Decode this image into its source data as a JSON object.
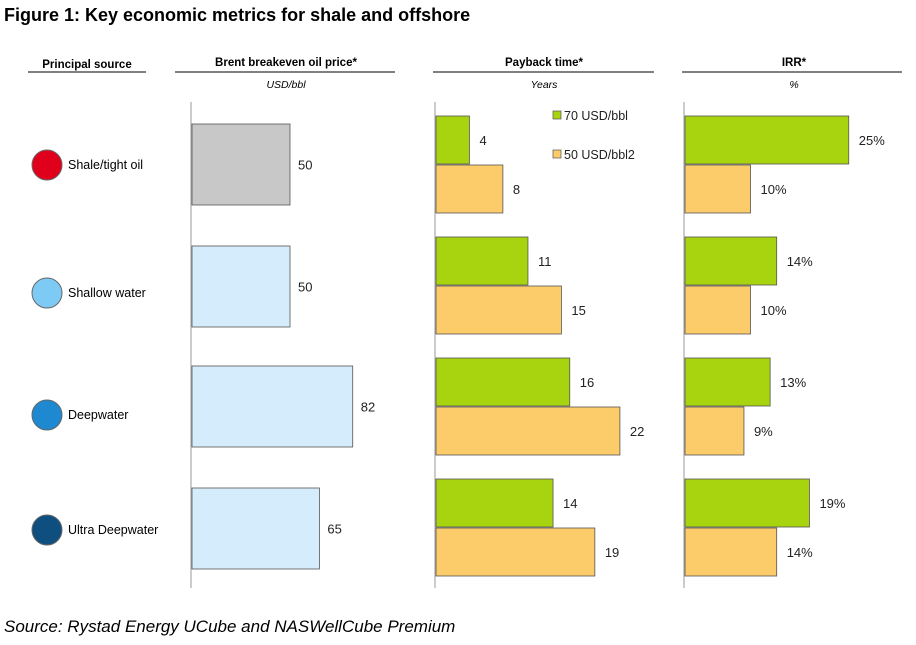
{
  "title": "Figure 1: Key economic metrics for shale and offshore",
  "source": "Source: Rystad Energy UCube and NASWellCube Premium",
  "colors": {
    "shale_marker": "#e0001b",
    "shallow_marker": "#7dcbf5",
    "deep_marker": "#1e88d1",
    "ultra_marker": "#0f4f7f",
    "shale_bar": "#c8c8c8",
    "other_bar": "#d4ecfb",
    "green": "#a7d30f",
    "orange": "#fccb6a"
  },
  "chart_data": [
    {
      "type": "bar",
      "title": "Principal source",
      "categories": [
        "Shale/tight oil",
        "Shallow water",
        "Deepwater",
        "Ultra Deepwater"
      ]
    },
    {
      "type": "bar",
      "title": "Brent breakeven oil price*",
      "unit": "USD/bbl",
      "categories": [
        "Shale/tight oil",
        "Shallow water",
        "Deepwater",
        "Ultra Deepwater"
      ],
      "values": [
        50,
        50,
        82,
        65
      ],
      "labels": [
        "50",
        "50",
        "82",
        "65"
      ],
      "xlim": [
        0,
        100
      ]
    },
    {
      "type": "bar",
      "title": "Payback time*",
      "unit": "Years",
      "categories": [
        "Shale/tight oil",
        "Shallow water",
        "Deepwater",
        "Ultra Deepwater"
      ],
      "series": [
        {
          "name": "70 USD/bbl",
          "values": [
            4,
            11,
            16,
            14
          ],
          "labels": [
            "4",
            "11",
            "16",
            "14"
          ]
        },
        {
          "name": "50 USD/bbl2",
          "values": [
            8,
            15,
            22,
            19
          ],
          "labels": [
            "8",
            "15",
            "22",
            "19"
          ]
        }
      ],
      "xlim": [
        0,
        30
      ]
    },
    {
      "type": "bar",
      "title": "IRR*",
      "unit": "%",
      "categories": [
        "Shale/tight oil",
        "Shallow water",
        "Deepwater",
        "Ultra Deepwater"
      ],
      "series": [
        {
          "name": "70 USD/bbl",
          "values": [
            25,
            14,
            13,
            19
          ],
          "labels": [
            "25%",
            "14%",
            "13%",
            "19%"
          ]
        },
        {
          "name": "50 USD/bbl",
          "values": [
            10,
            10,
            9,
            14
          ],
          "labels": [
            "10%",
            "10%",
            "9%",
            "14%"
          ]
        }
      ],
      "xlim": [
        0,
        35
      ]
    }
  ]
}
